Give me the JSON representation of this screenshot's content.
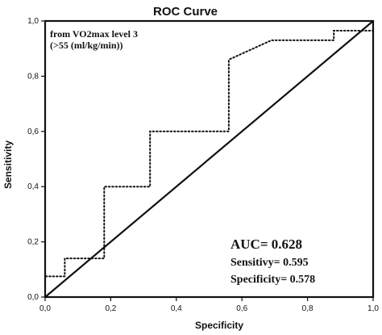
{
  "chart_data": {
    "type": "line",
    "title": "ROC Curve",
    "xlabel": "Specificity",
    "ylabel": "Sensitivity",
    "xlim": [
      0,
      1
    ],
    "ylim": [
      0,
      1
    ],
    "x_ticks": [
      "0,0",
      "0,2",
      "0,4",
      "0,6",
      "0,8",
      "1,0"
    ],
    "y_ticks": [
      "0,0",
      "0,2",
      "0,4",
      "0,6",
      "0,8",
      "1,0"
    ],
    "grid": false,
    "annotation_lines": [
      "from VO2max level 3",
      "(>55 (ml/kg/min))"
    ],
    "stats": {
      "auc": "AUC= 0.628",
      "sensitivity": "Sensitivy= 0.595",
      "specificity": "Specificity= 0.578"
    },
    "series": [
      {
        "style": "dotted",
        "x": [
          0.0,
          0.0,
          0.06,
          0.06,
          0.18,
          0.18,
          0.32,
          0.32,
          0.56,
          0.56,
          0.69,
          0.88,
          0.88,
          1.0,
          1.0
        ],
        "y": [
          0.0,
          0.075,
          0.075,
          0.14,
          0.14,
          0.4,
          0.4,
          0.6,
          0.6,
          0.86,
          0.93,
          0.93,
          0.965,
          0.965,
          1.0
        ]
      },
      {
        "style": "solid",
        "x": [
          0.0,
          1.0
        ],
        "y": [
          0.0,
          1.0
        ]
      }
    ]
  }
}
